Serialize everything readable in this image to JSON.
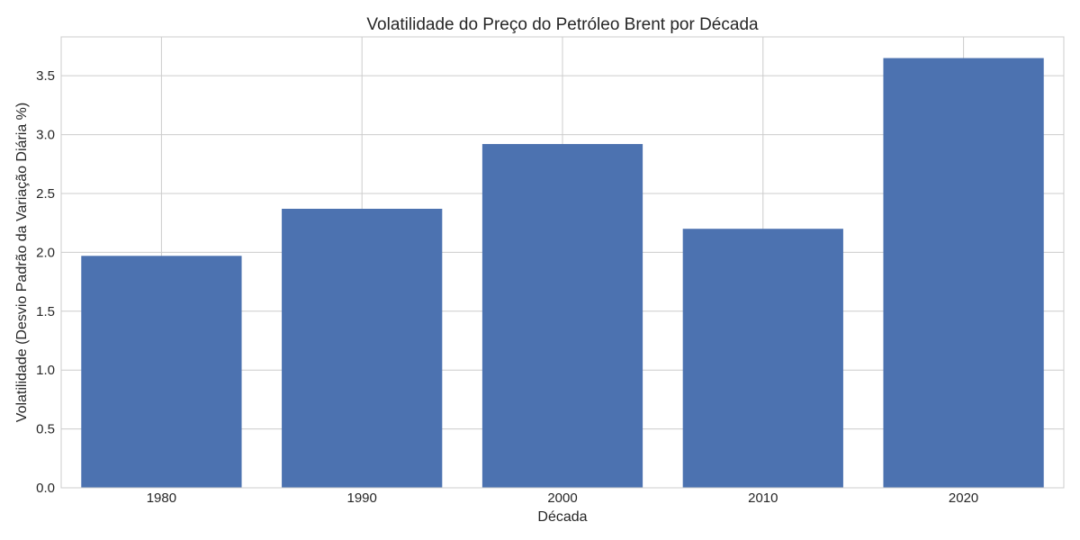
{
  "colors": {
    "bar": "#4c72b0",
    "grid": "#cccccc",
    "text": "#262626",
    "background": "#ffffff"
  },
  "chart_data": {
    "type": "bar",
    "title": "Volatilidade do Preço do Petróleo Brent por Década",
    "xlabel": "Década",
    "ylabel": "Volatilidade (Desvio Padrão da Variação Diária %)",
    "categories": [
      "1980",
      "1990",
      "2000",
      "2010",
      "2020"
    ],
    "values": [
      1.97,
      2.37,
      2.92,
      2.2,
      3.65
    ],
    "ylim": [
      0,
      3.83
    ],
    "yticks": [
      0.0,
      0.5,
      1.0,
      1.5,
      2.0,
      2.5,
      3.0,
      3.5
    ],
    "ytick_labels": [
      "0.0",
      "0.5",
      "1.0",
      "1.5",
      "2.0",
      "2.5",
      "3.0",
      "3.5"
    ],
    "grid": true,
    "legend": "none"
  }
}
